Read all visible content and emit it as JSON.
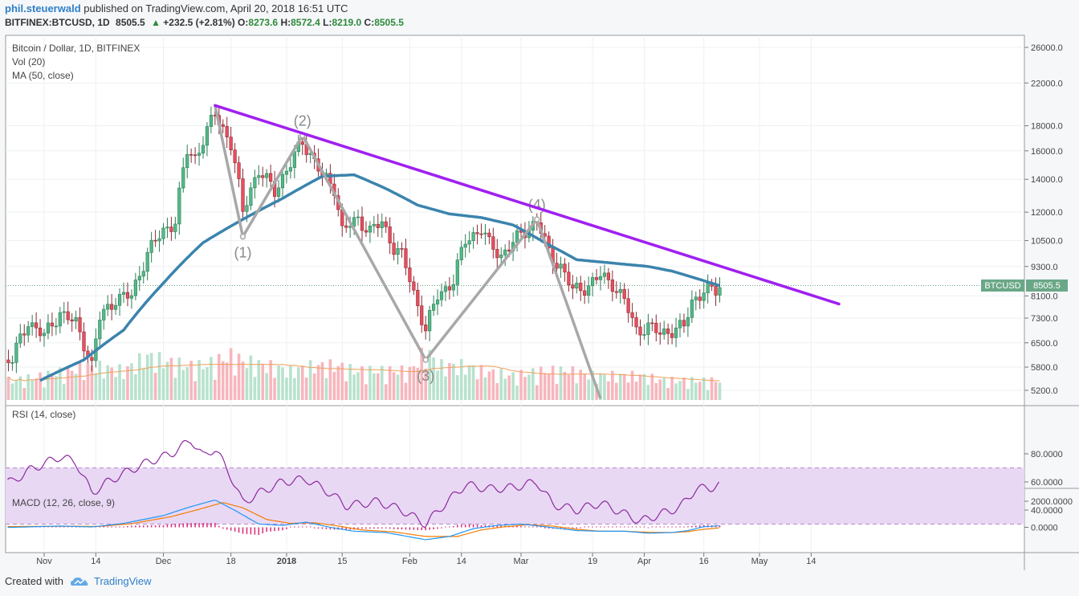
{
  "header": {
    "author": "phil.steuerwald",
    "published_text": "published on TradingView.com, April 20, 2018 16:51 UTC",
    "symbol": "BITFINEX:BTCUSD, 1D",
    "last": "8505.5",
    "change_arrow": "▲",
    "change": "+232.5 (+2.81%)",
    "o_label": "O:",
    "o": "8273.6",
    "h_label": "H:",
    "h": "8572.4",
    "l_label": "L:",
    "l": "8219.0",
    "c_label": "C:",
    "c": "8505.5"
  },
  "legend": {
    "main": "Bitcoin / Dollar, 1D, BITFINEX",
    "vol": "Vol (20)",
    "ma": "MA (50, close)",
    "rsi": "RSI (14, close)",
    "macd": "MACD (12, 26, close, 9)"
  },
  "price_tag": {
    "symbol": "BTCUSD",
    "value": "8505.5"
  },
  "footer": {
    "created": "Created with",
    "brand": "TradingView"
  },
  "colors": {
    "up": "#53b987",
    "down": "#eb4d5c",
    "ma": "#3b84ad",
    "trendline": "#a020f0",
    "rsi": "#8e2a9f",
    "rsi_band": "#e8d8f4",
    "macd": "#2196f3",
    "signal": "#f57c00",
    "hist_pos": "#d9347c",
    "hist_neg": "#d9347c",
    "zigzag": "#a8a8a8",
    "vol_up": "#b8e2cd",
    "vol_down": "#f7b6bd"
  },
  "chart_data": {
    "type": "candlestick",
    "price_axis_ticks": [
      26000,
      22000,
      18000,
      16000,
      14000,
      12000,
      10500,
      9300,
      8100,
      7300,
      6500,
      5800,
      5200
    ],
    "rsi_axis_ticks": [
      "80.0000",
      "60.0000",
      "40.0000"
    ],
    "macd_axis_ticks": [
      "2000.0000",
      "0.0000"
    ],
    "time_ticks": [
      {
        "day": 0,
        "label": "Nov",
        "bold": false
      },
      {
        "day": 13,
        "label": "14",
        "bold": false
      },
      {
        "day": 30,
        "label": "Dec",
        "bold": false
      },
      {
        "day": 47,
        "label": "18",
        "bold": false
      },
      {
        "day": 61,
        "label": "2018",
        "bold": true
      },
      {
        "day": 75,
        "label": "15",
        "bold": false
      },
      {
        "day": 92,
        "label": "Feb",
        "bold": false
      },
      {
        "day": 105,
        "label": "14",
        "bold": false
      },
      {
        "day": 120,
        "label": "Mar",
        "bold": false
      },
      {
        "day": 138,
        "label": "19",
        "bold": false
      },
      {
        "day": 151,
        "label": "Apr",
        "bold": false
      },
      {
        "day": 166,
        "label": "16",
        "bold": false
      },
      {
        "day": 180,
        "label": "May",
        "bold": false
      },
      {
        "day": 193,
        "label": "14",
        "bold": false
      }
    ],
    "price_keyframes": [
      [
        -8,
        6000
      ],
      [
        -4,
        7200
      ],
      [
        0,
        6700
      ],
      [
        4,
        7500
      ],
      [
        8,
        7100
      ],
      [
        10,
        6500
      ],
      [
        12,
        5850
      ],
      [
        14,
        7300
      ],
      [
        18,
        8000
      ],
      [
        22,
        8100
      ],
      [
        26,
        9900
      ],
      [
        30,
        11000
      ],
      [
        33,
        11500
      ],
      [
        36,
        16000
      ],
      [
        38,
        15500
      ],
      [
        41,
        17500
      ],
      [
        43,
        19100
      ],
      [
        47,
        16500
      ],
      [
        50,
        12000
      ],
      [
        52,
        13500
      ],
      [
        54,
        14500
      ],
      [
        58,
        13300
      ],
      [
        62,
        15000
      ],
      [
        65,
        16800
      ],
      [
        68,
        15200
      ],
      [
        70,
        14200
      ],
      [
        73,
        13500
      ],
      [
        75,
        11000
      ],
      [
        79,
        11600
      ],
      [
        82,
        11000
      ],
      [
        85,
        11400
      ],
      [
        88,
        10200
      ],
      [
        90,
        9800
      ],
      [
        93,
        8200
      ],
      [
        96,
        6900
      ],
      [
        99,
        8100
      ],
      [
        103,
        8700
      ],
      [
        106,
        10500
      ],
      [
        110,
        11100
      ],
      [
        112,
        10300
      ],
      [
        115,
        9800
      ],
      [
        118,
        10400
      ],
      [
        121,
        11000
      ],
      [
        124,
        11500
      ],
      [
        127,
        9900
      ],
      [
        130,
        9300
      ],
      [
        133,
        8300
      ],
      [
        137,
        8500
      ],
      [
        140,
        8900
      ],
      [
        143,
        8600
      ],
      [
        146,
        7900
      ],
      [
        149,
        6900
      ],
      [
        152,
        7000
      ],
      [
        155,
        6800
      ],
      [
        158,
        6900
      ],
      [
        161,
        7000
      ],
      [
        163,
        7900
      ],
      [
        166,
        8300
      ],
      [
        169,
        8300
      ],
      [
        170,
        8505
      ]
    ],
    "volume_keyframes": [
      [
        -8,
        4
      ],
      [
        0,
        5
      ],
      [
        12,
        7
      ],
      [
        20,
        6
      ],
      [
        26,
        9
      ],
      [
        30,
        8
      ],
      [
        36,
        7
      ],
      [
        40,
        7
      ],
      [
        47,
        9
      ],
      [
        50,
        8
      ],
      [
        56,
        7
      ],
      [
        62,
        6
      ],
      [
        68,
        7
      ],
      [
        74,
        7
      ],
      [
        78,
        6
      ],
      [
        86,
        6
      ],
      [
        92,
        6
      ],
      [
        96,
        10
      ],
      [
        100,
        7
      ],
      [
        106,
        7
      ],
      [
        110,
        6
      ],
      [
        118,
        5
      ],
      [
        126,
        6
      ],
      [
        132,
        6
      ],
      [
        138,
        5
      ],
      [
        144,
        5
      ],
      [
        150,
        5
      ],
      [
        156,
        4
      ],
      [
        162,
        4
      ],
      [
        170,
        4
      ]
    ],
    "ma50_keyframes": [
      [
        -8,
        5050
      ],
      [
        0,
        5500
      ],
      [
        10,
        6000
      ],
      [
        20,
        6900
      ],
      [
        30,
        8600
      ],
      [
        40,
        10400
      ],
      [
        50,
        11600
      ],
      [
        60,
        12800
      ],
      [
        70,
        14200
      ],
      [
        78,
        14300
      ],
      [
        86,
        13400
      ],
      [
        94,
        12400
      ],
      [
        102,
        11900
      ],
      [
        110,
        11700
      ],
      [
        118,
        11300
      ],
      [
        126,
        10400
      ],
      [
        134,
        9600
      ],
      [
        140,
        9500
      ],
      [
        146,
        9400
      ],
      [
        152,
        9300
      ],
      [
        158,
        9100
      ],
      [
        164,
        8800
      ],
      [
        170,
        8500
      ]
    ],
    "rsi_keyframes": [
      [
        -8,
        60
      ],
      [
        -4,
        68
      ],
      [
        4,
        78
      ],
      [
        8,
        74
      ],
      [
        12,
        52
      ],
      [
        16,
        60
      ],
      [
        20,
        66
      ],
      [
        26,
        74
      ],
      [
        32,
        80
      ],
      [
        37,
        90
      ],
      [
        40,
        78
      ],
      [
        43,
        84
      ],
      [
        47,
        64
      ],
      [
        50,
        45
      ],
      [
        54,
        52
      ],
      [
        60,
        60
      ],
      [
        66,
        62
      ],
      [
        72,
        52
      ],
      [
        76,
        43
      ],
      [
        84,
        46
      ],
      [
        90,
        40
      ],
      [
        96,
        30
      ],
      [
        100,
        42
      ],
      [
        106,
        58
      ],
      [
        112,
        55
      ],
      [
        118,
        56
      ],
      [
        124,
        60
      ],
      [
        128,
        44
      ],
      [
        134,
        40
      ],
      [
        140,
        45
      ],
      [
        144,
        40
      ],
      [
        150,
        32
      ],
      [
        156,
        38
      ],
      [
        160,
        42
      ],
      [
        164,
        55
      ],
      [
        168,
        56
      ],
      [
        170,
        58
      ]
    ],
    "macd_keyframes": [
      [
        -8,
        0
      ],
      [
        4,
        100
      ],
      [
        12,
        30
      ],
      [
        20,
        300
      ],
      [
        30,
        900
      ],
      [
        36,
        1500
      ],
      [
        43,
        2100
      ],
      [
        48,
        1300
      ],
      [
        54,
        250
      ],
      [
        60,
        150
      ],
      [
        66,
        400
      ],
      [
        72,
        0
      ],
      [
        78,
        -300
      ],
      [
        86,
        -400
      ],
      [
        96,
        -950
      ],
      [
        102,
        -700
      ],
      [
        108,
        -100
      ],
      [
        114,
        150
      ],
      [
        120,
        250
      ],
      [
        126,
        50
      ],
      [
        134,
        -250
      ],
      [
        140,
        -300
      ],
      [
        146,
        -300
      ],
      [
        152,
        -450
      ],
      [
        158,
        -400
      ],
      [
        162,
        -250
      ],
      [
        166,
        50
      ],
      [
        170,
        120
      ]
    ],
    "signal_keyframes": [
      [
        -8,
        60
      ],
      [
        6,
        90
      ],
      [
        14,
        70
      ],
      [
        22,
        280
      ],
      [
        32,
        820
      ],
      [
        38,
        1300
      ],
      [
        45,
        1900
      ],
      [
        50,
        1500
      ],
      [
        56,
        600
      ],
      [
        62,
        300
      ],
      [
        68,
        350
      ],
      [
        74,
        100
      ],
      [
        80,
        -200
      ],
      [
        88,
        -350
      ],
      [
        96,
        -700
      ],
      [
        104,
        -700
      ],
      [
        110,
        -200
      ],
      [
        116,
        50
      ],
      [
        122,
        200
      ],
      [
        128,
        100
      ],
      [
        134,
        -150
      ],
      [
        140,
        -300
      ],
      [
        146,
        -300
      ],
      [
        152,
        -380
      ],
      [
        158,
        -400
      ],
      [
        162,
        -330
      ],
      [
        166,
        -150
      ],
      [
        170,
        -40
      ]
    ],
    "trendline": [
      [
        43,
        19800
      ],
      [
        200,
        7800
      ]
    ],
    "zigzag": [
      {
        "day": 43,
        "price": 19800,
        "label": ""
      },
      {
        "day": 50,
        "price": 10700,
        "label": "(1)"
      },
      {
        "day": 65,
        "price": 17200,
        "label": "(2)"
      },
      {
        "day": 96,
        "price": 6000,
        "label": "(3)"
      },
      {
        "day": 124,
        "price": 11600,
        "label": "(4)"
      },
      {
        "day": 140,
        "price": 5000,
        "label": ""
      }
    ]
  }
}
